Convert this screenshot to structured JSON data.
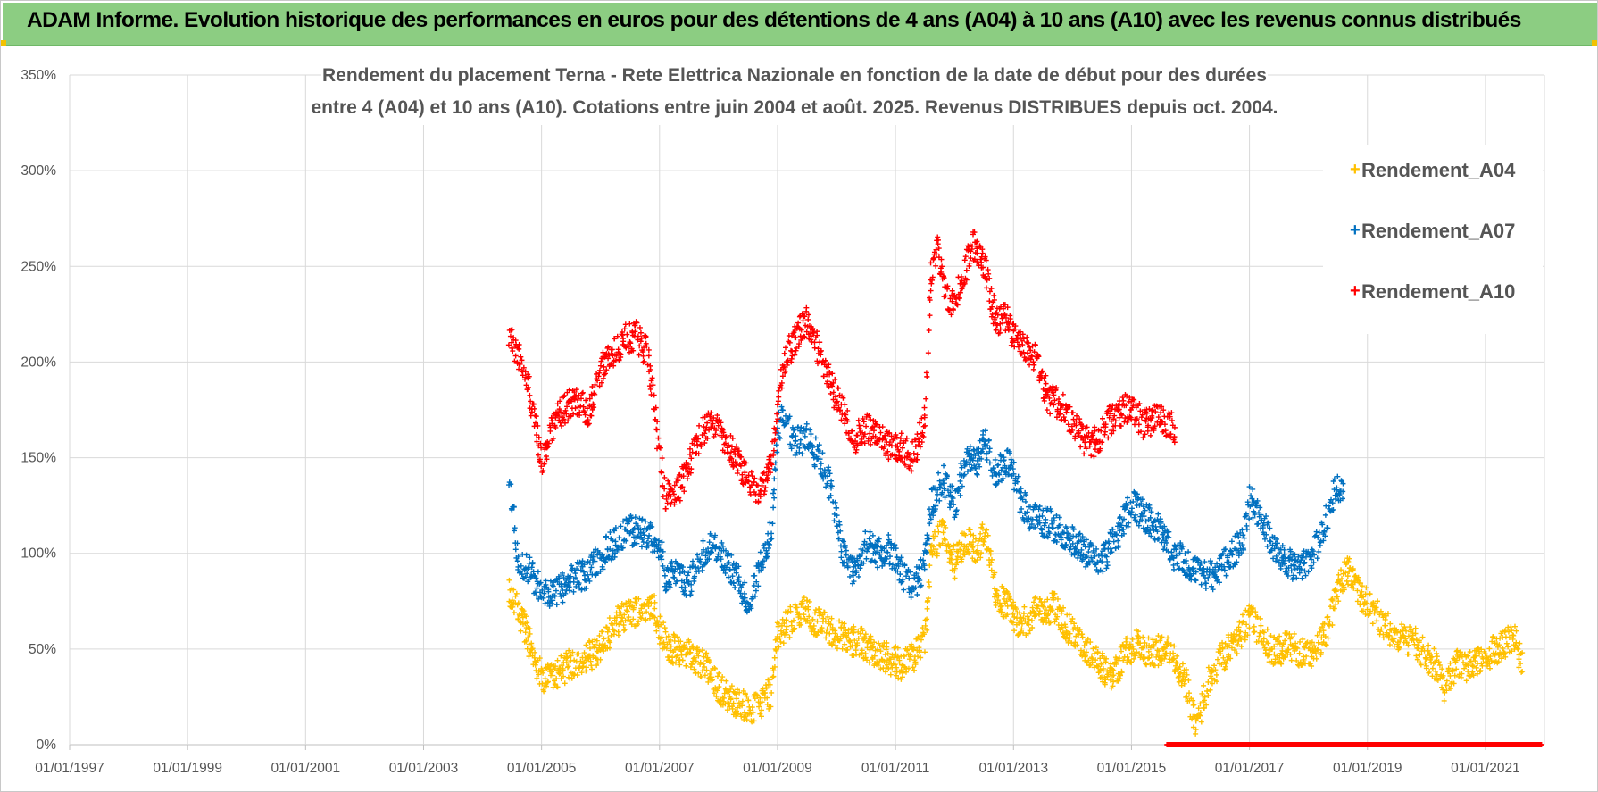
{
  "banner": {
    "title": "ADAM Informe. Evolution historique des performances en euros pour des détentions de 4 ans (A04) à 10 ans (A10) avec les revenus connus distribués"
  },
  "chart_data": {
    "type": "scatter",
    "title_lines": [
      "Rendement du placement Terna - Rete Elettrica Nazionale en fonction de la date de début pour des durées",
      "entre 4 (A04) et 10 ans (A10). Cotations entre juin 2004 et août. 2025. Revenus DISTRIBUES depuis oct. 2004."
    ],
    "x_tick_labels": [
      "01/01/1997",
      "01/01/1999",
      "01/01/2001",
      "01/01/2003",
      "01/01/2005",
      "01/01/2007",
      "01/01/2009",
      "01/01/2011",
      "01/01/2013",
      "01/01/2015",
      "01/01/2017",
      "01/01/2019",
      "01/01/2021"
    ],
    "y_tick_labels": [
      "0%",
      "50%",
      "100%",
      "150%",
      "200%",
      "250%",
      "300%",
      "350%"
    ],
    "xlim": [
      1997.0,
      2022.0
    ],
    "ylim": [
      0,
      350
    ],
    "grid": true,
    "legend_position": "top-right",
    "series": [
      {
        "name": "Rendement_A04",
        "color": "#ffc000",
        "start_x": 2004.45,
        "end_x": 2021.63,
        "points": [
          [
            2004.45,
            78
          ],
          [
            2004.6,
            72
          ],
          [
            2004.75,
            58
          ],
          [
            2004.9,
            42
          ],
          [
            2005.05,
            33
          ],
          [
            2005.3,
            38
          ],
          [
            2005.6,
            44
          ],
          [
            2005.9,
            48
          ],
          [
            2006.1,
            56
          ],
          [
            2006.3,
            65
          ],
          [
            2006.6,
            70
          ],
          [
            2006.9,
            74
          ],
          [
            2007.0,
            60
          ],
          [
            2007.2,
            50
          ],
          [
            2007.5,
            48
          ],
          [
            2007.8,
            40
          ],
          [
            2008.0,
            30
          ],
          [
            2008.3,
            22
          ],
          [
            2008.6,
            18
          ],
          [
            2008.9,
            28
          ],
          [
            2009.0,
            58
          ],
          [
            2009.2,
            64
          ],
          [
            2009.4,
            70
          ],
          [
            2009.6,
            66
          ],
          [
            2009.9,
            60
          ],
          [
            2010.2,
            55
          ],
          [
            2010.5,
            52
          ],
          [
            2010.8,
            46
          ],
          [
            2011.1,
            42
          ],
          [
            2011.3,
            46
          ],
          [
            2011.5,
            55
          ],
          [
            2011.6,
            100
          ],
          [
            2011.8,
            112
          ],
          [
            2012.0,
            95
          ],
          [
            2012.2,
            108
          ],
          [
            2012.4,
            100
          ],
          [
            2012.5,
            112
          ],
          [
            2012.7,
            80
          ],
          [
            2012.9,
            72
          ],
          [
            2013.1,
            62
          ],
          [
            2013.4,
            70
          ],
          [
            2013.7,
            72
          ],
          [
            2013.9,
            62
          ],
          [
            2014.2,
            50
          ],
          [
            2014.5,
            40
          ],
          [
            2014.7,
            36
          ],
          [
            2014.9,
            48
          ],
          [
            2015.1,
            52
          ],
          [
            2015.3,
            48
          ],
          [
            2015.6,
            50
          ],
          [
            2015.9,
            36
          ],
          [
            2016.0,
            20
          ],
          [
            2016.1,
            10
          ],
          [
            2016.3,
            32
          ],
          [
            2016.5,
            44
          ],
          [
            2016.8,
            56
          ],
          [
            2017.0,
            66
          ],
          [
            2017.2,
            58
          ],
          [
            2017.4,
            48
          ],
          [
            2017.7,
            52
          ],
          [
            2018.0,
            46
          ],
          [
            2018.3,
            58
          ],
          [
            2018.5,
            82
          ],
          [
            2018.7,
            92
          ],
          [
            2018.9,
            78
          ],
          [
            2019.2,
            66
          ],
          [
            2019.5,
            56
          ],
          [
            2019.8,
            54
          ],
          [
            2020.0,
            46
          ],
          [
            2020.2,
            40
          ],
          [
            2020.3,
            30
          ],
          [
            2020.5,
            42
          ],
          [
            2020.7,
            40
          ],
          [
            2020.9,
            46
          ],
          [
            2021.1,
            48
          ],
          [
            2021.3,
            52
          ],
          [
            2021.5,
            56
          ],
          [
            2021.63,
            40
          ]
        ]
      },
      {
        "name": "Rendement_A07",
        "color": "#0070c0",
        "start_x": 2004.45,
        "end_x": 2018.6,
        "points": [
          [
            2004.45,
            135
          ],
          [
            2004.5,
            128
          ],
          [
            2004.6,
            98
          ],
          [
            2004.8,
            90
          ],
          [
            2005.0,
            82
          ],
          [
            2005.2,
            78
          ],
          [
            2005.5,
            86
          ],
          [
            2005.8,
            90
          ],
          [
            2006.0,
            98
          ],
          [
            2006.2,
            105
          ],
          [
            2006.5,
            112
          ],
          [
            2006.8,
            110
          ],
          [
            2007.0,
            104
          ],
          [
            2007.1,
            88
          ],
          [
            2007.3,
            90
          ],
          [
            2007.5,
            84
          ],
          [
            2007.7,
            98
          ],
          [
            2007.9,
            106
          ],
          [
            2008.1,
            96
          ],
          [
            2008.3,
            88
          ],
          [
            2008.5,
            74
          ],
          [
            2008.7,
            92
          ],
          [
            2008.9,
            112
          ],
          [
            2009.0,
            165
          ],
          [
            2009.1,
            172
          ],
          [
            2009.3,
            158
          ],
          [
            2009.5,
            160
          ],
          [
            2009.7,
            150
          ],
          [
            2009.9,
            135
          ],
          [
            2010.1,
            100
          ],
          [
            2010.3,
            90
          ],
          [
            2010.5,
            105
          ],
          [
            2010.7,
            100
          ],
          [
            2010.9,
            102
          ],
          [
            2011.1,
            90
          ],
          [
            2011.2,
            84
          ],
          [
            2011.4,
            86
          ],
          [
            2011.5,
            98
          ],
          [
            2011.6,
            125
          ],
          [
            2011.8,
            140
          ],
          [
            2012.0,
            125
          ],
          [
            2012.2,
            150
          ],
          [
            2012.4,
            146
          ],
          [
            2012.5,
            160
          ],
          [
            2012.7,
            140
          ],
          [
            2012.9,
            150
          ],
          [
            2013.1,
            130
          ],
          [
            2013.3,
            118
          ],
          [
            2013.6,
            116
          ],
          [
            2013.9,
            110
          ],
          [
            2014.2,
            100
          ],
          [
            2014.5,
            96
          ],
          [
            2014.8,
            112
          ],
          [
            2015.0,
            126
          ],
          [
            2015.2,
            120
          ],
          [
            2015.5,
            112
          ],
          [
            2015.7,
            100
          ],
          [
            2015.9,
            96
          ],
          [
            2016.1,
            90
          ],
          [
            2016.4,
            88
          ],
          [
            2016.7,
            100
          ],
          [
            2016.9,
            106
          ],
          [
            2017.0,
            128
          ],
          [
            2017.2,
            118
          ],
          [
            2017.4,
            104
          ],
          [
            2017.6,
            96
          ],
          [
            2017.8,
            92
          ],
          [
            2018.0,
            94
          ],
          [
            2018.2,
            108
          ],
          [
            2018.4,
            128
          ],
          [
            2018.5,
            136
          ],
          [
            2018.6,
            132
          ]
        ]
      },
      {
        "name": "Rendement_A10",
        "color": "#ff0000",
        "start_x": 2004.45,
        "end_x": 2015.75,
        "points": [
          [
            2004.45,
            214
          ],
          [
            2004.6,
            204
          ],
          [
            2004.75,
            190
          ],
          [
            2004.9,
            168
          ],
          [
            2005.0,
            148
          ],
          [
            2005.2,
            168
          ],
          [
            2005.4,
            176
          ],
          [
            2005.6,
            180
          ],
          [
            2005.8,
            172
          ],
          [
            2006.0,
            196
          ],
          [
            2006.2,
            204
          ],
          [
            2006.4,
            212
          ],
          [
            2006.6,
            214
          ],
          [
            2006.8,
            204
          ],
          [
            2006.9,
            180
          ],
          [
            2007.0,
            150
          ],
          [
            2007.1,
            130
          ],
          [
            2007.3,
            132
          ],
          [
            2007.5,
            146
          ],
          [
            2007.7,
            162
          ],
          [
            2007.9,
            168
          ],
          [
            2008.1,
            160
          ],
          [
            2008.3,
            150
          ],
          [
            2008.5,
            140
          ],
          [
            2008.7,
            132
          ],
          [
            2008.9,
            150
          ],
          [
            2009.0,
            170
          ],
          [
            2009.1,
            200
          ],
          [
            2009.3,
            212
          ],
          [
            2009.5,
            222
          ],
          [
            2009.7,
            206
          ],
          [
            2009.9,
            188
          ],
          [
            2010.1,
            175
          ],
          [
            2010.3,
            160
          ],
          [
            2010.5,
            166
          ],
          [
            2010.7,
            160
          ],
          [
            2010.9,
            156
          ],
          [
            2011.1,
            156
          ],
          [
            2011.3,
            150
          ],
          [
            2011.5,
            170
          ],
          [
            2011.6,
            245
          ],
          [
            2011.7,
            260
          ],
          [
            2011.9,
            230
          ],
          [
            2012.1,
            238
          ],
          [
            2012.3,
            262
          ],
          [
            2012.5,
            252
          ],
          [
            2012.7,
            222
          ],
          [
            2012.9,
            224
          ],
          [
            2013.0,
            212
          ],
          [
            2013.2,
            208
          ],
          [
            2013.4,
            200
          ],
          [
            2013.6,
            180
          ],
          [
            2013.8,
            178
          ],
          [
            2014.0,
            168
          ],
          [
            2014.2,
            160
          ],
          [
            2014.4,
            158
          ],
          [
            2014.6,
            168
          ],
          [
            2014.8,
            174
          ],
          [
            2015.0,
            176
          ],
          [
            2015.2,
            168
          ],
          [
            2015.4,
            170
          ],
          [
            2015.6,
            168
          ],
          [
            2015.75,
            164
          ]
        ]
      }
    ],
    "zero_band": {
      "color": "#ff0000",
      "x_start": 2015.6,
      "x_end": 2021.95,
      "value": 0
    }
  }
}
